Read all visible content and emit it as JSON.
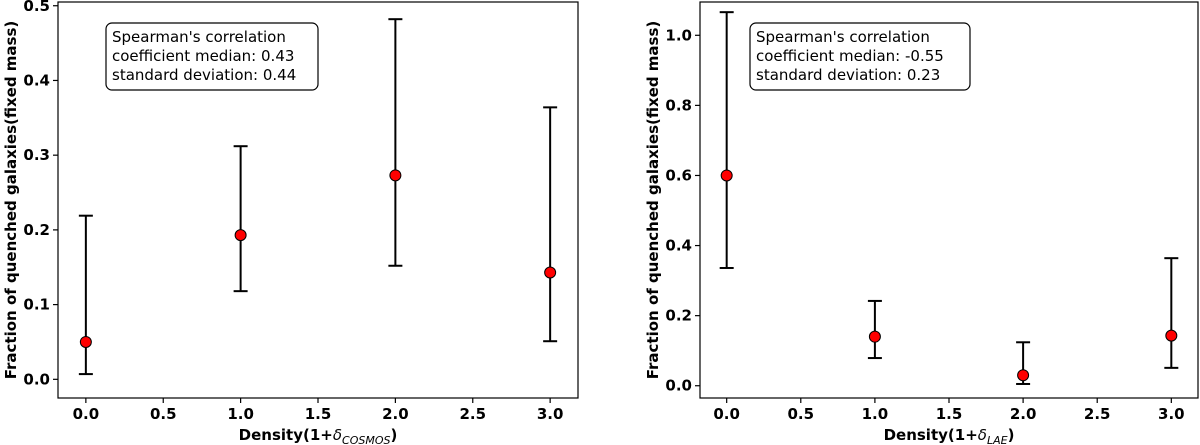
{
  "chart_data": [
    {
      "type": "scatter",
      "xlabel": {
        "prefix": "Density(1+",
        "delta": "δ",
        "subscript": "COSMOS",
        "suffix": ")"
      },
      "ylabel": "Fraction of quenched galaxies(fixed mass)",
      "xlim": [
        -0.18,
        3.18
      ],
      "ylim": [
        -0.025,
        0.505
      ],
      "xticks": [
        0.0,
        0.5,
        1.0,
        1.5,
        2.0,
        2.5,
        3.0
      ],
      "xtick_labels": [
        "0.0",
        "0.5",
        "1.0",
        "1.5",
        "2.0",
        "2.5",
        "3.0"
      ],
      "yticks": [
        0.0,
        0.1,
        0.2,
        0.3,
        0.4,
        0.5
      ],
      "ytick_labels": [
        "0.0",
        "0.1",
        "0.2",
        "0.3",
        "0.4",
        "0.5"
      ],
      "points": [
        {
          "x": 0.0,
          "y": 0.05,
          "y_low": 0.007,
          "y_high": 0.219
        },
        {
          "x": 1.0,
          "y": 0.193,
          "y_low": 0.118,
          "y_high": 0.312
        },
        {
          "x": 2.0,
          "y": 0.273,
          "y_low": 0.152,
          "y_high": 0.482
        },
        {
          "x": 3.0,
          "y": 0.143,
          "y_low": 0.051,
          "y_high": 0.364
        }
      ],
      "marker_color": "#ff0000",
      "errorbar_color": "#000000",
      "annotation": [
        "Spearman's correlation",
        "coefficient median: 0.43",
        "standard deviation: 0.44"
      ],
      "grid": false
    },
    {
      "type": "scatter",
      "xlabel": {
        "prefix": "Density(1+",
        "delta": "δ",
        "subscript": "LAE",
        "suffix": ")"
      },
      "ylabel": "Fraction of quenched galaxies(fixed mass)",
      "xlim": [
        -0.18,
        3.18
      ],
      "ylim": [
        -0.035,
        1.095
      ],
      "xticks": [
        0.0,
        0.5,
        1.0,
        1.5,
        2.0,
        2.5,
        3.0
      ],
      "xtick_labels": [
        "0.0",
        "0.5",
        "1.0",
        "1.5",
        "2.0",
        "2.5",
        "3.0"
      ],
      "yticks": [
        0.0,
        0.2,
        0.4,
        0.6,
        0.8,
        1.0
      ],
      "ytick_labels": [
        "0.0",
        "0.2",
        "0.4",
        "0.6",
        "0.8",
        "1.0"
      ],
      "points": [
        {
          "x": 0.0,
          "y": 0.6,
          "y_low": 0.336,
          "y_high": 1.066
        },
        {
          "x": 1.0,
          "y": 0.14,
          "y_low": 0.079,
          "y_high": 0.242
        },
        {
          "x": 2.0,
          "y": 0.03,
          "y_low": 0.005,
          "y_high": 0.124
        },
        {
          "x": 3.0,
          "y": 0.143,
          "y_low": 0.051,
          "y_high": 0.364
        }
      ],
      "marker_color": "#ff0000",
      "errorbar_color": "#000000",
      "annotation": [
        "Spearman's correlation",
        "coefficient median: -0.55",
        "standard deviation: 0.23"
      ],
      "grid": false
    }
  ]
}
